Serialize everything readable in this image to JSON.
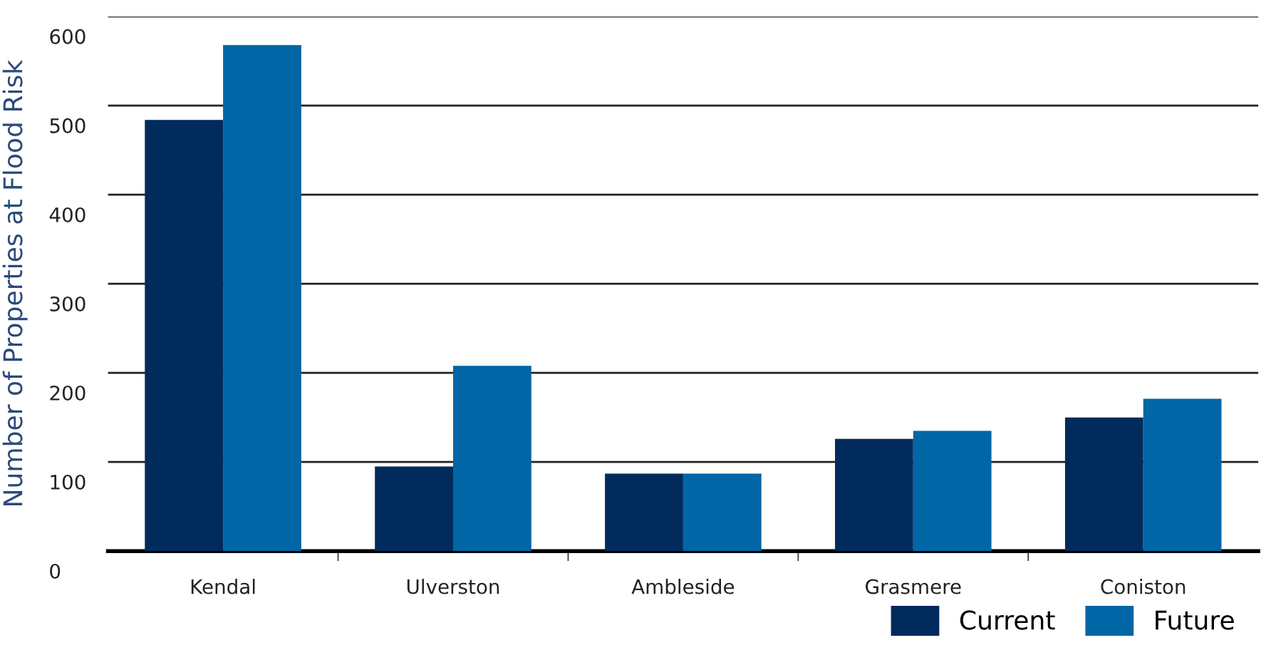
{
  "chart_data": {
    "type": "bar",
    "ylabel": "Number of Properties at Flood Risk",
    "categories": [
      "Kendal",
      "Ulverston",
      "Ambleside",
      "Grasmere",
      "Coniston"
    ],
    "series": [
      {
        "name": "Current",
        "color": "#002b5c",
        "values": [
          484,
          95,
          87,
          126,
          150
        ]
      },
      {
        "name": "Future",
        "color": "#0066a6",
        "values": [
          568,
          208,
          87,
          135,
          171
        ]
      }
    ],
    "ylim": [
      0,
      600
    ],
    "yticks": [
      0,
      100,
      200,
      300,
      400,
      500,
      600
    ],
    "grid": "y",
    "legend": "bottom right"
  }
}
